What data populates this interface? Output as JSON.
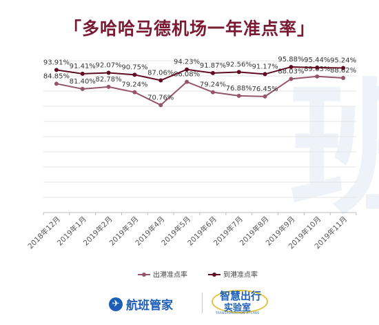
{
  "title": "「多哈哈马德机场一年准点率」",
  "legend": {
    "position": "bottom-center"
  },
  "footer": {
    "brand1": "航班管家",
    "brand2_line1": "智慧出行",
    "brand2_line2": "实验室",
    "brand2_sub": "TRANSPORTATION AI LABS"
  },
  "colors": {
    "departure": "#96546b",
    "arrival": "#5e0c21",
    "title": "#7a1a32",
    "grid": "#e6e6e6"
  },
  "chart_data": {
    "type": "line",
    "title": "「多哈哈马德机场一年准点率」",
    "categories": [
      "2018年12月",
      "2019年1月",
      "2019年2月",
      "2019年3月",
      "2019年4月",
      "2019年5月",
      "2019年6月",
      "2019年7月",
      "2019年8月",
      "2019年9月",
      "2019年10月",
      "2019年11月"
    ],
    "series": [
      {
        "name": "出港准点率",
        "color": "#96546b",
        "values": [
          84.85,
          81.4,
          82.78,
          79.24,
          70.76,
          86.08,
          79.24,
          76.88,
          76.45,
          88.03,
          89.63,
          88.62
        ],
        "labels": [
          "84.85%",
          "81.40%",
          "82.78%",
          "79.24%",
          "70.76%",
          "86.08%",
          "79.24%",
          "76.88%",
          "76.45%",
          "88.03%",
          "89.63%",
          "88.62%"
        ]
      },
      {
        "name": "到港准点率",
        "color": "#5e0c21",
        "values": [
          93.91,
          91.41,
          92.07,
          90.75,
          87.06,
          94.23,
          91.87,
          92.56,
          91.17,
          95.88,
          95.44,
          95.24
        ],
        "labels": [
          "93.91%",
          "91.41%",
          "92.07%",
          "90.75%",
          "87.06%",
          "94.23%",
          "91.87%",
          "92.56%",
          "91.17%",
          "95.88%",
          "95.44%",
          "95.24%"
        ]
      }
    ],
    "xlabel": "",
    "ylabel": "",
    "grid": true,
    "y_axis_labels": false
  }
}
